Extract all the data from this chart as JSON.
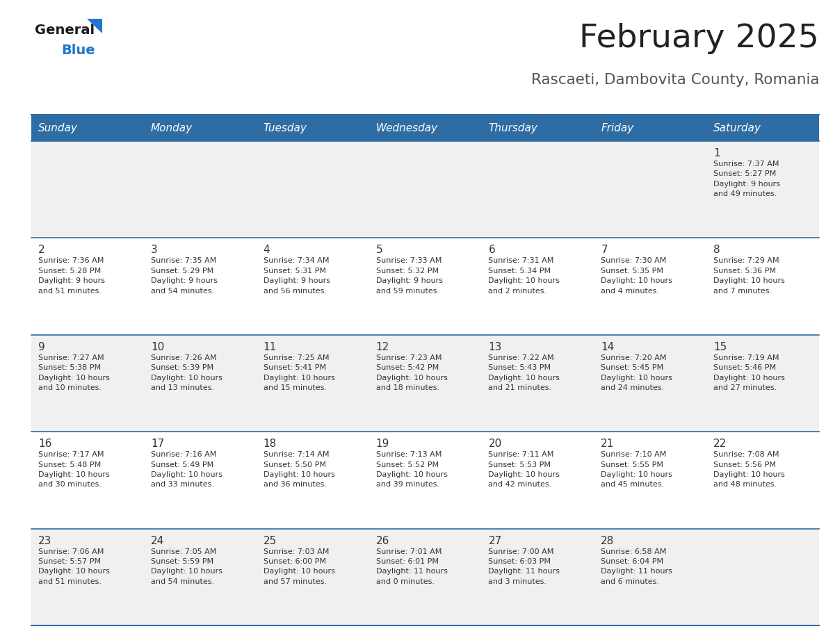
{
  "title": "February 2025",
  "subtitle": "Rascaeti, Dambovita County, Romania",
  "days_of_week": [
    "Sunday",
    "Monday",
    "Tuesday",
    "Wednesday",
    "Thursday",
    "Friday",
    "Saturday"
  ],
  "header_bg": "#2e6da4",
  "header_text": "#ffffff",
  "row_bg_odd": "#f0f0f0",
  "row_bg_even": "#ffffff",
  "cell_text": "#333333",
  "border_color": "#2e6da4",
  "title_color": "#222222",
  "subtitle_color": "#555555",
  "logo_general_color": "#1a1a1a",
  "logo_blue_color": "#2277cc",
  "weeks": [
    [
      {
        "day": null,
        "info": null
      },
      {
        "day": null,
        "info": null
      },
      {
        "day": null,
        "info": null
      },
      {
        "day": null,
        "info": null
      },
      {
        "day": null,
        "info": null
      },
      {
        "day": null,
        "info": null
      },
      {
        "day": 1,
        "info": "Sunrise: 7:37 AM\nSunset: 5:27 PM\nDaylight: 9 hours\nand 49 minutes."
      }
    ],
    [
      {
        "day": 2,
        "info": "Sunrise: 7:36 AM\nSunset: 5:28 PM\nDaylight: 9 hours\nand 51 minutes."
      },
      {
        "day": 3,
        "info": "Sunrise: 7:35 AM\nSunset: 5:29 PM\nDaylight: 9 hours\nand 54 minutes."
      },
      {
        "day": 4,
        "info": "Sunrise: 7:34 AM\nSunset: 5:31 PM\nDaylight: 9 hours\nand 56 minutes."
      },
      {
        "day": 5,
        "info": "Sunrise: 7:33 AM\nSunset: 5:32 PM\nDaylight: 9 hours\nand 59 minutes."
      },
      {
        "day": 6,
        "info": "Sunrise: 7:31 AM\nSunset: 5:34 PM\nDaylight: 10 hours\nand 2 minutes."
      },
      {
        "day": 7,
        "info": "Sunrise: 7:30 AM\nSunset: 5:35 PM\nDaylight: 10 hours\nand 4 minutes."
      },
      {
        "day": 8,
        "info": "Sunrise: 7:29 AM\nSunset: 5:36 PM\nDaylight: 10 hours\nand 7 minutes."
      }
    ],
    [
      {
        "day": 9,
        "info": "Sunrise: 7:27 AM\nSunset: 5:38 PM\nDaylight: 10 hours\nand 10 minutes."
      },
      {
        "day": 10,
        "info": "Sunrise: 7:26 AM\nSunset: 5:39 PM\nDaylight: 10 hours\nand 13 minutes."
      },
      {
        "day": 11,
        "info": "Sunrise: 7:25 AM\nSunset: 5:41 PM\nDaylight: 10 hours\nand 15 minutes."
      },
      {
        "day": 12,
        "info": "Sunrise: 7:23 AM\nSunset: 5:42 PM\nDaylight: 10 hours\nand 18 minutes."
      },
      {
        "day": 13,
        "info": "Sunrise: 7:22 AM\nSunset: 5:43 PM\nDaylight: 10 hours\nand 21 minutes."
      },
      {
        "day": 14,
        "info": "Sunrise: 7:20 AM\nSunset: 5:45 PM\nDaylight: 10 hours\nand 24 minutes."
      },
      {
        "day": 15,
        "info": "Sunrise: 7:19 AM\nSunset: 5:46 PM\nDaylight: 10 hours\nand 27 minutes."
      }
    ],
    [
      {
        "day": 16,
        "info": "Sunrise: 7:17 AM\nSunset: 5:48 PM\nDaylight: 10 hours\nand 30 minutes."
      },
      {
        "day": 17,
        "info": "Sunrise: 7:16 AM\nSunset: 5:49 PM\nDaylight: 10 hours\nand 33 minutes."
      },
      {
        "day": 18,
        "info": "Sunrise: 7:14 AM\nSunset: 5:50 PM\nDaylight: 10 hours\nand 36 minutes."
      },
      {
        "day": 19,
        "info": "Sunrise: 7:13 AM\nSunset: 5:52 PM\nDaylight: 10 hours\nand 39 minutes."
      },
      {
        "day": 20,
        "info": "Sunrise: 7:11 AM\nSunset: 5:53 PM\nDaylight: 10 hours\nand 42 minutes."
      },
      {
        "day": 21,
        "info": "Sunrise: 7:10 AM\nSunset: 5:55 PM\nDaylight: 10 hours\nand 45 minutes."
      },
      {
        "day": 22,
        "info": "Sunrise: 7:08 AM\nSunset: 5:56 PM\nDaylight: 10 hours\nand 48 minutes."
      }
    ],
    [
      {
        "day": 23,
        "info": "Sunrise: 7:06 AM\nSunset: 5:57 PM\nDaylight: 10 hours\nand 51 minutes."
      },
      {
        "day": 24,
        "info": "Sunrise: 7:05 AM\nSunset: 5:59 PM\nDaylight: 10 hours\nand 54 minutes."
      },
      {
        "day": 25,
        "info": "Sunrise: 7:03 AM\nSunset: 6:00 PM\nDaylight: 10 hours\nand 57 minutes."
      },
      {
        "day": 26,
        "info": "Sunrise: 7:01 AM\nSunset: 6:01 PM\nDaylight: 11 hours\nand 0 minutes."
      },
      {
        "day": 27,
        "info": "Sunrise: 7:00 AM\nSunset: 6:03 PM\nDaylight: 11 hours\nand 3 minutes."
      },
      {
        "day": 28,
        "info": "Sunrise: 6:58 AM\nSunset: 6:04 PM\nDaylight: 11 hours\nand 6 minutes."
      },
      {
        "day": null,
        "info": null
      }
    ]
  ]
}
